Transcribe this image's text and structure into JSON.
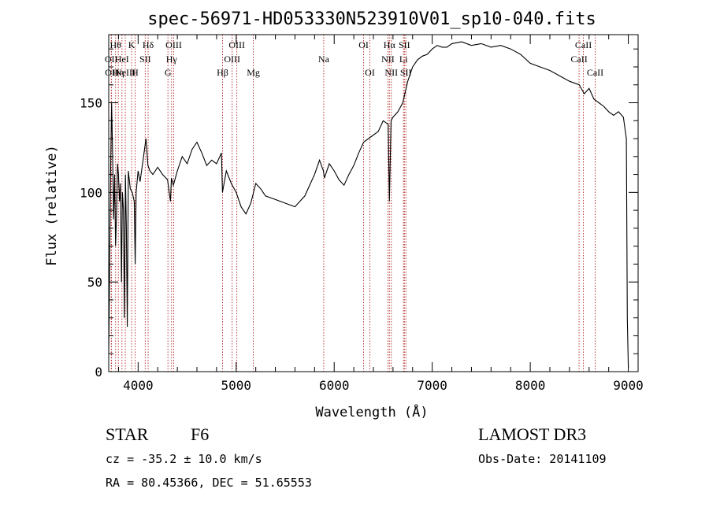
{
  "chart_data": {
    "type": "line",
    "title": "spec-56971-HD053330N523910V01_sp10-040.fits",
    "xlabel": "Wavelength (Å)",
    "ylabel": "Flux (relative)",
    "xlim": [
      3700,
      9100
    ],
    "ylim": [
      0,
      188
    ],
    "xticks": [
      4000,
      5000,
      6000,
      7000,
      8000,
      9000
    ],
    "yticks": [
      0,
      50,
      100,
      150
    ],
    "grid": false,
    "line_color": "#000000",
    "marker_color": "#b22222",
    "series": [
      {
        "x": [
          3700,
          3710,
          3720,
          3730,
          3740,
          3750,
          3760,
          3770,
          3780,
          3790,
          3800,
          3810,
          3820,
          3830,
          3840,
          3850,
          3860,
          3870,
          3880,
          3890,
          3900,
          3920,
          3940,
          3960,
          3970,
          3980,
          4000,
          4020,
          4050,
          4080,
          4100,
          4120,
          4150,
          4200,
          4250,
          4300,
          4330,
          4340,
          4360,
          4400,
          4450,
          4500,
          4550,
          4600,
          4650,
          4700,
          4750,
          4800,
          4850,
          4860,
          4900,
          4950,
          5000,
          5050,
          5100,
          5150,
          5200,
          5250,
          5300,
          5400,
          5500,
          5600,
          5700,
          5800,
          5850,
          5890,
          5900,
          5950,
          6000,
          6050,
          6100,
          6150,
          6200,
          6250,
          6300,
          6350,
          6400,
          6450,
          6500,
          6550,
          6563,
          6580,
          6600,
          6650,
          6700,
          6750,
          6800,
          6850,
          6900,
          6950,
          7000,
          7050,
          7100,
          7150,
          7200,
          7300,
          7400,
          7500,
          7600,
          7700,
          7800,
          7900,
          8000,
          8100,
          8200,
          8300,
          8400,
          8500,
          8550,
          8600,
          8650,
          8700,
          8750,
          8800,
          8850,
          8900,
          8950,
          8980,
          8990,
          9000
        ],
        "y": [
          10,
          60,
          115,
          150,
          120,
          85,
          110,
          70,
          90,
          116,
          110,
          95,
          105,
          50,
          100,
          90,
          30,
          110,
          80,
          25,
          112,
          102,
          100,
          95,
          60,
          100,
          112,
          106,
          118,
          130,
          115,
          112,
          110,
          114,
          110,
          107,
          95,
          108,
          104,
          112,
          120,
          116,
          124,
          128,
          122,
          115,
          118,
          116,
          122,
          100,
          112,
          105,
          100,
          92,
          88,
          94,
          105,
          102,
          98,
          96,
          94,
          92,
          98,
          110,
          118,
          112,
          108,
          116,
          112,
          107,
          104,
          110,
          115,
          122,
          128,
          130,
          132,
          134,
          140,
          138,
          95,
          140,
          142,
          145,
          150,
          162,
          170,
          174,
          176,
          177,
          180,
          182,
          181,
          181,
          183,
          184,
          182,
          183,
          181,
          182,
          180,
          177,
          172,
          170,
          168,
          165,
          162,
          160,
          155,
          158,
          152,
          150,
          148,
          145,
          143,
          145,
          142,
          130,
          30,
          2
        ]
      }
    ],
    "line_markers": [
      {
        "wavelength": 3726,
        "label": "OII",
        "row": 2
      },
      {
        "wavelength": 3729,
        "label": "OII",
        "row": 3
      },
      {
        "wavelength": 3770,
        "label": "Hθ",
        "row": 1
      },
      {
        "wavelength": 3798,
        "label": "Hη",
        "row": 3
      },
      {
        "wavelength": 3835,
        "label": "HeI",
        "row": 2
      },
      {
        "wavelength": 3869,
        "label": "NeIII",
        "row": 3
      },
      {
        "wavelength": 3934,
        "label": "K",
        "row": 1
      },
      {
        "wavelength": 3969,
        "label": "H",
        "row": 3
      },
      {
        "wavelength": 4072,
        "label": "SII",
        "row": 2
      },
      {
        "wavelength": 4102,
        "label": "Hδ",
        "row": 1
      },
      {
        "wavelength": 4304,
        "label": "G",
        "row": 3
      },
      {
        "wavelength": 4341,
        "label": "Hγ",
        "row": 2
      },
      {
        "wavelength": 4363,
        "label": "OIII",
        "row": 1
      },
      {
        "wavelength": 4861,
        "label": "Hβ",
        "row": 3
      },
      {
        "wavelength": 4959,
        "label": "OIII",
        "row": 2
      },
      {
        "wavelength": 5007,
        "label": "OIII",
        "row": 1
      },
      {
        "wavelength": 5175,
        "label": "Mg",
        "row": 3
      },
      {
        "wavelength": 5893,
        "label": "Na",
        "row": 2
      },
      {
        "wavelength": 6300,
        "label": "OI",
        "row": 1
      },
      {
        "wavelength": 6364,
        "label": "OI",
        "row": 3
      },
      {
        "wavelength": 6548,
        "label": "NII",
        "row": 2
      },
      {
        "wavelength": 6563,
        "label": "Hα",
        "row": 1
      },
      {
        "wavelength": 6583,
        "label": "NII",
        "row": 3
      },
      {
        "wavelength": 6707,
        "label": "Li",
        "row": 2
      },
      {
        "wavelength": 6716,
        "label": "SII",
        "row": 1
      },
      {
        "wavelength": 6731,
        "label": "SII",
        "row": 3
      },
      {
        "wavelength": 8498,
        "label": "CaII",
        "row": 2
      },
      {
        "wavelength": 8542,
        "label": "CaII",
        "row": 1
      },
      {
        "wavelength": 8662,
        "label": "CaII",
        "row": 3
      }
    ]
  },
  "info": {
    "object_class": "STAR",
    "subclass": "F6",
    "survey": "LAMOST DR3",
    "redshift": "cz = -35.2 ± 10.0 km/s",
    "obs_date": "Obs-Date: 20141109",
    "coords": "RA =  80.45366, DEC =  51.65553"
  }
}
